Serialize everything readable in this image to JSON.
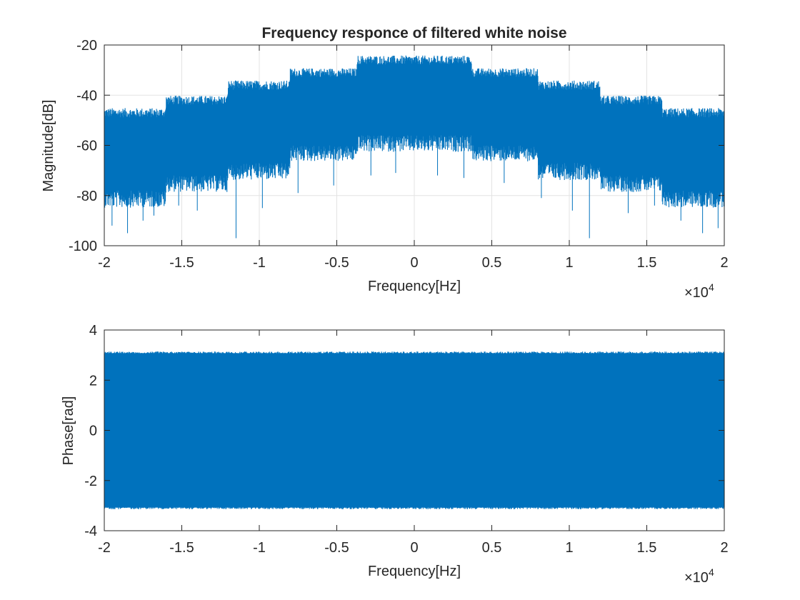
{
  "chart_data": [
    {
      "type": "line",
      "title": "Frequency responce of filtered white noise",
      "xlabel": "Frequency[Hz]",
      "ylabel": "Magnitude[dB]",
      "xlim": [
        -20000,
        20000
      ],
      "ylim": [
        -100,
        -20
      ],
      "grid": true,
      "color": "#0072BD",
      "x_ticks": [
        -20000,
        -15000,
        -10000,
        -5000,
        0,
        5000,
        10000,
        15000,
        20000
      ],
      "x_tick_labels": [
        "-2",
        "-1.5",
        "-1",
        "-0.5",
        "0",
        "0.5",
        "1",
        "1.5",
        "2"
      ],
      "x_exponent": {
        "base": "×10",
        "power": "4"
      },
      "y_ticks": [
        -20,
        -40,
        -60,
        -80,
        -100
      ],
      "y_tick_labels": [
        "-20",
        "-40",
        "-60",
        "-80",
        "-100"
      ],
      "envelope": {
        "x": [
          -20000,
          -16000,
          -16000,
          -12000,
          -12000,
          -8000,
          -8000,
          -3700,
          -3700,
          3700,
          3700,
          8000,
          8000,
          12000,
          12000,
          16000,
          16000,
          20000
        ],
        "upper": [
          -47,
          -47,
          -42,
          -42,
          -36,
          -36,
          -31,
          -31,
          -26,
          -26,
          -31,
          -31,
          -36,
          -36,
          -42,
          -42,
          -47,
          -47
        ],
        "lower": [
          -78,
          -78,
          -72,
          -72,
          -67,
          -67,
          -60,
          -60,
          -56,
          -56,
          -60,
          -60,
          -67,
          -67,
          -72,
          -72,
          -78,
          -78
        ]
      },
      "dips": [
        {
          "x": -19500,
          "y": -92
        },
        {
          "x": -18500,
          "y": -95
        },
        {
          "x": -17500,
          "y": -90
        },
        {
          "x": -16800,
          "y": -88
        },
        {
          "x": -15200,
          "y": -84
        },
        {
          "x": -14000,
          "y": -86
        },
        {
          "x": -11500,
          "y": -97
        },
        {
          "x": -9800,
          "y": -85
        },
        {
          "x": -7500,
          "y": -79
        },
        {
          "x": -5200,
          "y": -76
        },
        {
          "x": -2800,
          "y": -72
        },
        {
          "x": -1200,
          "y": -71
        },
        {
          "x": 1500,
          "y": -72
        },
        {
          "x": 3200,
          "y": -73
        },
        {
          "x": 5800,
          "y": -75
        },
        {
          "x": 8200,
          "y": -81
        },
        {
          "x": 10200,
          "y": -86
        },
        {
          "x": 11300,
          "y": -97
        },
        {
          "x": 13800,
          "y": -87
        },
        {
          "x": 15500,
          "y": -84
        },
        {
          "x": 17200,
          "y": -90
        },
        {
          "x": 18600,
          "y": -95
        },
        {
          "x": 19600,
          "y": -93
        }
      ]
    },
    {
      "type": "line",
      "title": "",
      "xlabel": "Frequency[Hz]",
      "ylabel": "Phase[rad]",
      "xlim": [
        -20000,
        20000
      ],
      "ylim": [
        -4,
        4
      ],
      "grid": false,
      "color": "#0072BD",
      "x_ticks": [
        -20000,
        -15000,
        -10000,
        -5000,
        0,
        5000,
        10000,
        15000,
        20000
      ],
      "x_tick_labels": [
        "-2",
        "-1.5",
        "-1",
        "-0.5",
        "0",
        "0.5",
        "1",
        "1.5",
        "2"
      ],
      "x_exponent": {
        "base": "×10",
        "power": "4"
      },
      "y_ticks": [
        4,
        2,
        0,
        -2,
        -4
      ],
      "y_tick_labels": [
        "4",
        "2",
        "0",
        "-2",
        "-4"
      ],
      "envelope": {
        "x": [
          -20000,
          20000
        ],
        "upper": [
          3.1416,
          3.1416
        ],
        "lower": [
          -3.1416,
          -3.1416
        ]
      },
      "dips": []
    }
  ]
}
